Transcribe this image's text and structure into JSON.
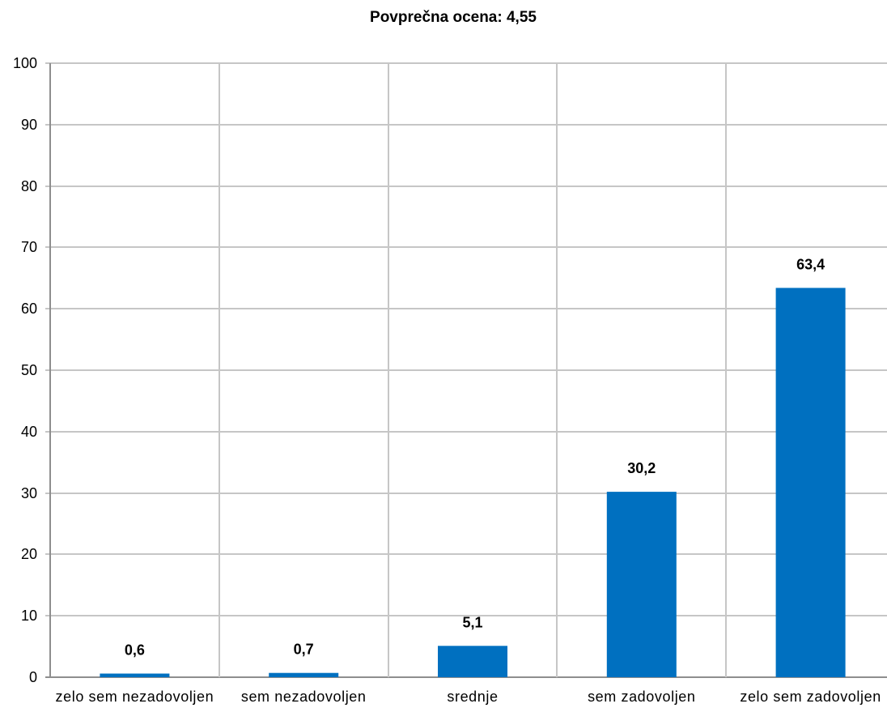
{
  "chart_data": {
    "type": "bar",
    "title": "Povprečna ocena: 4,55",
    "xlabel": "",
    "ylabel": "",
    "categories": [
      "zelo sem nezadovoljen",
      "sem nezadovoljen",
      "srednje",
      "sem zadovoljen",
      "zelo sem zadovoljen"
    ],
    "values": [
      0.6,
      0.7,
      5.1,
      30.2,
      63.4
    ],
    "data_labels": [
      "0,6",
      "0,7",
      "5,1",
      "30,2",
      "63,4"
    ],
    "ylim": [
      0,
      100
    ],
    "yticks": [
      0,
      10,
      20,
      30,
      40,
      50,
      60,
      70,
      80,
      90,
      100
    ],
    "ytick_labels": [
      "0",
      "10",
      "20",
      "30",
      "40",
      "50",
      "60",
      "70",
      "80",
      "90",
      "100"
    ],
    "grid": true,
    "legend": "none",
    "bar_color": "#0070c0",
    "grid_color": "#c6c6c6"
  }
}
